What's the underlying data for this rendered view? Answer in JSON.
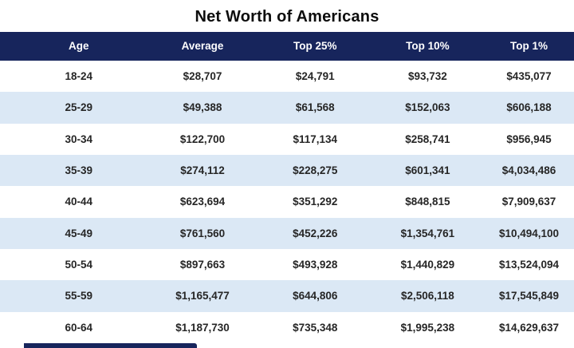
{
  "title": "Net Worth of Americans",
  "colors": {
    "header_bg": "#17255c",
    "header_text": "#ffffff",
    "row_bg": "#ffffff",
    "row_alt_bg": "#dbe8f5",
    "title_text": "#0d0d0d",
    "cell_text": "#262626"
  },
  "chart_data": {
    "type": "table",
    "title": "Net Worth of Americans",
    "columns": [
      "Age",
      "Average",
      "Top 25%",
      "Top 10%",
      "Top 1%"
    ],
    "rows": [
      [
        "18-24",
        "$28,707",
        "$24,791",
        "$93,732",
        "$435,077"
      ],
      [
        "25-29",
        "$49,388",
        "$61,568",
        "$152,063",
        "$606,188"
      ],
      [
        "30-34",
        "$122,700",
        "$117,134",
        "$258,741",
        "$956,945"
      ],
      [
        "35-39",
        "$274,112",
        "$228,275",
        "$601,341",
        "$4,034,486"
      ],
      [
        "40-44",
        "$623,694",
        "$351,292",
        "$848,815",
        "$7,909,637"
      ],
      [
        "45-49",
        "$761,560",
        "$452,226",
        "$1,354,761",
        "$10,494,100"
      ],
      [
        "50-54",
        "$897,663",
        "$493,928",
        "$1,440,829",
        "$13,524,094"
      ],
      [
        "55-59",
        "$1,165,477",
        "$644,806",
        "$2,506,118",
        "$17,545,849"
      ],
      [
        "60-64",
        "$1,187,730",
        "$735,348",
        "$1,995,238",
        "$14,629,637"
      ]
    ]
  }
}
